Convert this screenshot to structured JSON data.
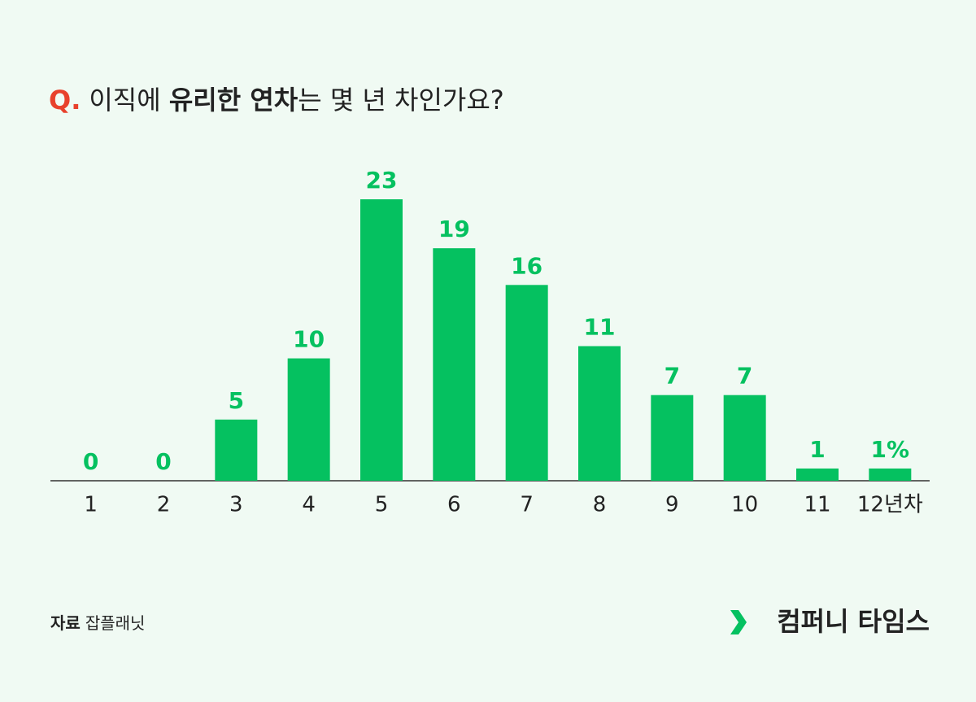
{
  "chart_data": {
    "type": "bar",
    "title_prefix": "Q.",
    "title": [
      "이직에 ",
      "유리한 연차",
      "는 몇 년 차인가요?"
    ],
    "categories": [
      "1",
      "2",
      "3",
      "4",
      "5",
      "6",
      "7",
      "8",
      "9",
      "10",
      "11",
      "12년차"
    ],
    "values": [
      0,
      0,
      5,
      10,
      23,
      19,
      16,
      11,
      7,
      7,
      1,
      1
    ],
    "value_labels": [
      "0",
      "0",
      "5",
      "10",
      "23",
      "19",
      "16",
      "11",
      "7",
      "7",
      "1",
      "1%"
    ],
    "color": "#05c160",
    "ylim": [
      0,
      23
    ],
    "source_label": "자료",
    "source": "잡플래닛",
    "brand": "컴퍼니 타임스"
  }
}
